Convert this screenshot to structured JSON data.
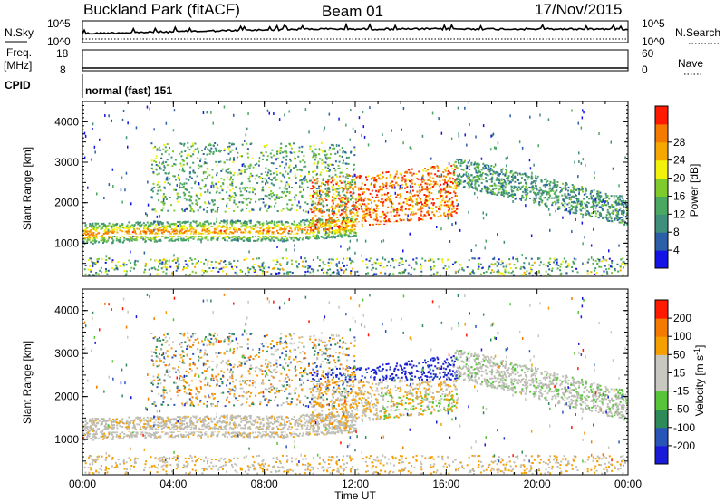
{
  "header": {
    "site": "Buckland Park (fitACF)",
    "beam": "Beam 01",
    "date": "17/Nov/2015"
  },
  "params": {
    "nsky_label": "N.Sky",
    "nsky_ticks": [
      "10^5",
      "10^0"
    ],
    "nsearch_label": "N.Search",
    "nsearch_ticks": [
      "10^5",
      "10^0"
    ],
    "freq_label_1": "Freq.",
    "freq_label_2": "[MHz]",
    "freq_ticks": [
      "18",
      "8"
    ],
    "nave_label": "Nave",
    "nave_ticks": [
      "60",
      "0"
    ],
    "cpid_label": "CPID",
    "cpid_value": "normal (fast) 151"
  },
  "chart_data": [
    {
      "type": "heatmap",
      "title": "",
      "ylabel": "Slant Range [km]",
      "xlabel": "",
      "ylim": [
        180,
        4500
      ],
      "yticks": [
        "1000",
        "2000",
        "3000",
        "4000"
      ],
      "colorbar_label": "Power [dB]",
      "colorbar_ticks": [
        "4",
        "8",
        "12",
        "16",
        "20",
        "24",
        "28"
      ],
      "colorbar_range": [
        0,
        32
      ],
      "colorbar_colors": [
        "#1414e6",
        "#2b5fa8",
        "#3f8f7a",
        "#4aa860",
        "#7fcb2e",
        "#f2f20a",
        "#f5a800",
        "#f57a00",
        "#ff1a00"
      ]
    },
    {
      "type": "heatmap",
      "title": "",
      "ylabel": "Slant Range [km]",
      "xlabel": "Time UT",
      "ylim": [
        180,
        4500
      ],
      "yticks": [
        "1000",
        "2000",
        "3000",
        "4000"
      ],
      "xticks": [
        "00:00",
        "04:00",
        "08:00",
        "12:00",
        "16:00",
        "20:00",
        "00:00"
      ],
      "xrange_hours": [
        0,
        24
      ],
      "colorbar_label": "Velocity [m s",
      "colorbar_label_sup": "-1",
      "colorbar_label_end": "]",
      "colorbar_ticks": [
        "200",
        "100",
        "50",
        "15",
        "-15",
        "-50",
        "-100",
        "-200"
      ],
      "colorbar_colors": [
        "#1a1ad9",
        "#2a55b8",
        "#2e8a58",
        "#57c43a",
        "#c8c8c0",
        "#c8c8c0",
        "#f5a000",
        "#f57a00",
        "#ff1a00"
      ]
    }
  ],
  "colors": {
    "ground_gray": "#bdbdb5",
    "grid": "#000000"
  }
}
